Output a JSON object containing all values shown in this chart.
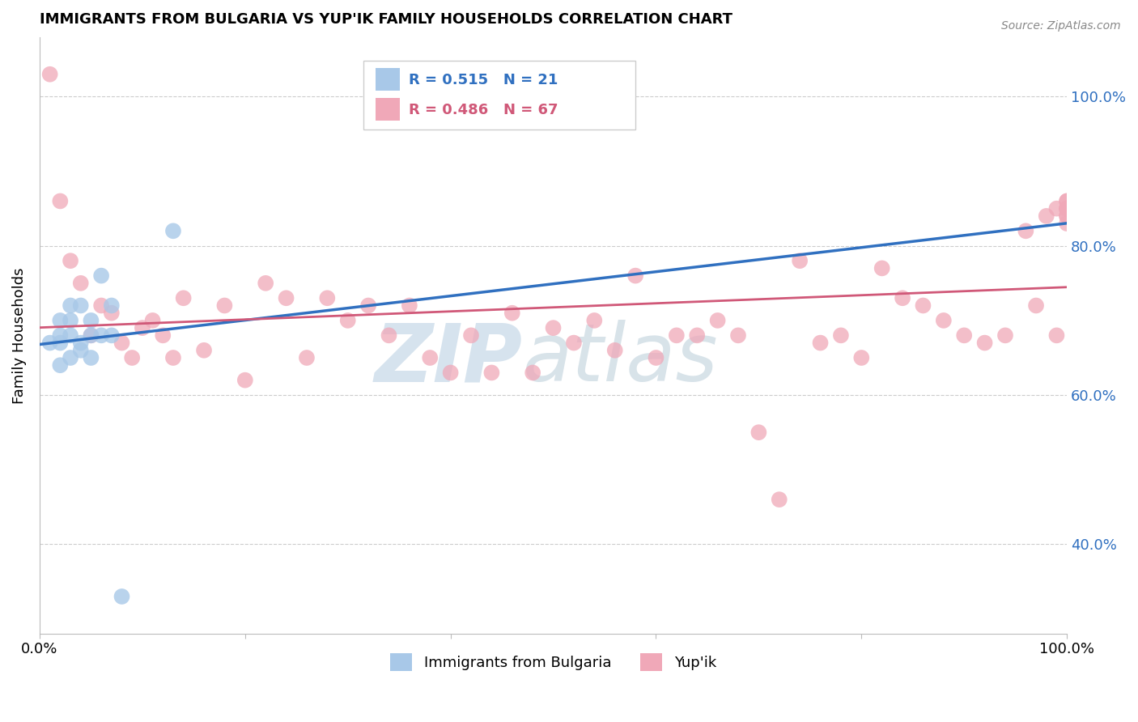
{
  "title": "IMMIGRANTS FROM BULGARIA VS YUP'IK FAMILY HOUSEHOLDS CORRELATION CHART",
  "source_text": "Source: ZipAtlas.com",
  "ylabel": "Family Households",
  "xlim": [
    0,
    100
  ],
  "ylim": [
    28,
    108
  ],
  "x_ticks": [
    0,
    20,
    40,
    60,
    80,
    100
  ],
  "x_tick_labels": [
    "0.0%",
    "",
    "",
    "",
    "",
    "100.0%"
  ],
  "y_tick_right_labels": [
    "40.0%",
    "60.0%",
    "80.0%",
    "100.0%"
  ],
  "y_tick_right_values": [
    40,
    60,
    80,
    100
  ],
  "grid_color": "#cccccc",
  "bg_color": "#ffffff",
  "watermark_zip": "ZIP",
  "watermark_atlas": "atlas",
  "watermark_color_zip": "#c8d8e8",
  "watermark_color_atlas": "#b0c8d8",
  "legend_r_bulgaria": "R = 0.515",
  "legend_n_bulgaria": "N = 21",
  "legend_r_yupik": "R = 0.486",
  "legend_n_yupik": "N = 67",
  "bulgaria_color": "#a8c8e8",
  "yupik_color": "#f0a8b8",
  "bulgaria_line_color": "#3070c0",
  "yupik_line_color": "#d05878",
  "bulgaria_points_x": [
    1,
    2,
    2,
    2,
    2,
    3,
    3,
    3,
    3,
    4,
    4,
    4,
    5,
    5,
    5,
    6,
    6,
    7,
    7,
    8,
    13
  ],
  "bulgaria_points_y": [
    67,
    64,
    67,
    68,
    70,
    65,
    68,
    70,
    72,
    66,
    67,
    72,
    65,
    68,
    70,
    68,
    76,
    68,
    72,
    33,
    82
  ],
  "yupik_points_x": [
    1,
    2,
    3,
    4,
    5,
    6,
    7,
    8,
    9,
    10,
    11,
    12,
    13,
    14,
    16,
    18,
    20,
    22,
    24,
    26,
    28,
    30,
    32,
    34,
    36,
    38,
    40,
    42,
    44,
    46,
    48,
    50,
    52,
    54,
    56,
    58,
    60,
    62,
    64,
    66,
    68,
    70,
    72,
    74,
    76,
    78,
    80,
    82,
    84,
    86,
    88,
    90,
    92,
    94,
    96,
    97,
    98,
    99,
    99,
    100,
    100,
    100,
    100,
    100,
    100,
    100,
    100
  ],
  "yupik_points_y": [
    103,
    86,
    78,
    75,
    68,
    72,
    71,
    67,
    65,
    69,
    70,
    68,
    65,
    73,
    66,
    72,
    62,
    75,
    73,
    65,
    73,
    70,
    72,
    68,
    72,
    65,
    63,
    68,
    63,
    71,
    63,
    69,
    67,
    70,
    66,
    76,
    65,
    68,
    68,
    70,
    68,
    55,
    46,
    78,
    67,
    68,
    65,
    77,
    73,
    72,
    70,
    68,
    67,
    68,
    82,
    72,
    84,
    85,
    68,
    84,
    85,
    86,
    86,
    85,
    84,
    85,
    83
  ]
}
